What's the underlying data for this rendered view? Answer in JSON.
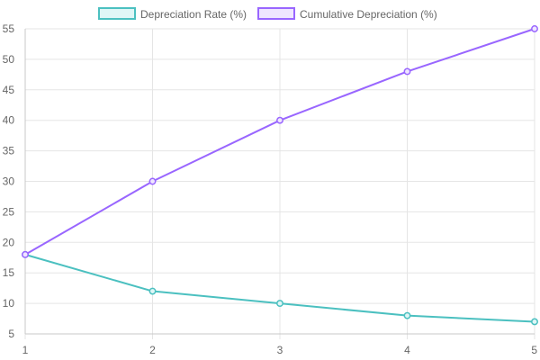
{
  "chart_data": {
    "type": "line",
    "x": [
      1,
      2,
      3,
      4,
      5
    ],
    "series": [
      {
        "name": "Depreciation Rate (%)",
        "values": [
          18,
          12,
          10,
          8,
          7
        ],
        "color": "#4bc0c0",
        "fill": "#dff6f6"
      },
      {
        "name": "Cumulative Depreciation (%)",
        "values": [
          18,
          30,
          40,
          48,
          55
        ],
        "color": "#9966ff",
        "fill": "#efe6ff"
      }
    ],
    "ylim": [
      5,
      55
    ],
    "yticks": [
      5,
      10,
      15,
      20,
      25,
      30,
      35,
      40,
      45,
      50,
      55
    ],
    "xticks": [
      1,
      2,
      3,
      4,
      5
    ],
    "grid": true,
    "legend_position": "top-center"
  },
  "colors": {
    "grid": "#e5e5e5",
    "axis": "#c8c8c8",
    "tick_text": "#666666"
  }
}
